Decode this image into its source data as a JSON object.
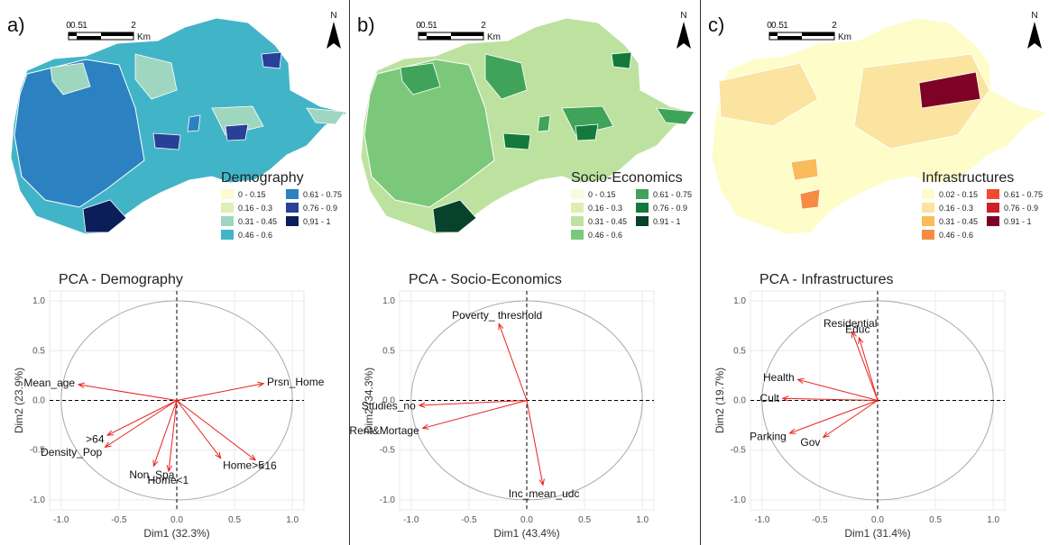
{
  "panels": [
    {
      "letter": "a)",
      "map": {
        "legend_title": "Demography",
        "scale_labels": [
          "0",
          "0.5",
          "1",
          "2",
          "Km"
        ],
        "north_label": "N",
        "classes": [
          {
            "label": "0 - 0.15",
            "color": "#fcfcd2"
          },
          {
            "label": "0.16 - 0.3",
            "color": "#dff0b4"
          },
          {
            "label": "0.31 - 0.45",
            "color": "#9fd6bf"
          },
          {
            "label": "0.46 - 0.6",
            "color": "#42b4c8"
          },
          {
            "label": "0.61 - 0.75",
            "color": "#2c82c0"
          },
          {
            "label": "0.76 - 0.9",
            "color": "#2a3f98"
          },
          {
            "label": "0,91 - 1",
            "color": "#0c1e5a"
          }
        ],
        "base_color": "#42b4c8",
        "main_color": "#2c82c0",
        "accent_color": "#9fd6bf"
      },
      "chart_data": {
        "type": "scatter",
        "title": "PCA - Demography",
        "xlabel": "Dim1 (32.3%)",
        "ylabel": "Dim2 (23.9%)",
        "xlim": [
          -1.1,
          1.1
        ],
        "ylim": [
          -1.1,
          1.1
        ],
        "xticks": [
          "-1.0",
          "-0.5",
          "0.0",
          "0.5",
          "1.0"
        ],
        "yticks": [
          "-1.0",
          "-0.5",
          "0.0",
          "0.5",
          "1.0"
        ],
        "grid": true,
        "vectors": [
          {
            "label": "Mean_age",
            "x": -0.85,
            "y": 0.16
          },
          {
            "label": "Prsn_Home",
            "x": 0.75,
            "y": 0.17
          },
          {
            "label": ">64",
            "x": -0.6,
            "y": -0.35
          },
          {
            "label": "Density_Pop",
            "x": -0.62,
            "y": -0.47
          },
          {
            "label": "Non_Spa",
            "x": -0.2,
            "y": -0.66
          },
          {
            "label": "Home<1",
            "x": -0.07,
            "y": -0.71
          },
          {
            "label": "Home>5",
            "x": 0.38,
            "y": -0.58
          },
          {
            "label": "<16",
            "x": 0.68,
            "y": -0.6
          }
        ]
      }
    },
    {
      "letter": "b)",
      "map": {
        "legend_title": "Socio-Economics",
        "scale_labels": [
          "0",
          "0.5",
          "1",
          "2",
          "Km"
        ],
        "north_label": "N",
        "classes": [
          {
            "label": "0 - 0.15",
            "color": "#f7fcdc"
          },
          {
            "label": "0.16 - 0.3",
            "color": "#dcefb0"
          },
          {
            "label": "0.31 - 0.45",
            "color": "#bde2a0"
          },
          {
            "label": "0.46 - 0.6",
            "color": "#7cc87a"
          },
          {
            "label": "0.61 - 0.75",
            "color": "#40a35a"
          },
          {
            "label": "0.76 - 0.9",
            "color": "#137a3c"
          },
          {
            "label": "0.91 - 1",
            "color": "#06432a"
          }
        ],
        "base_color": "#bde2a0",
        "main_color": "#7cc87a",
        "accent_color": "#40a35a"
      },
      "chart_data": {
        "type": "scatter",
        "title": "PCA - Socio-Economics",
        "xlabel": "Dim1 (43.4%)",
        "ylabel": "Dim2 (34.3%)",
        "xlim": [
          -1.1,
          1.1
        ],
        "ylim": [
          -1.1,
          1.1
        ],
        "xticks": [
          "-1.0",
          "-0.5",
          "0.0",
          "0.5",
          "1.0"
        ],
        "yticks": [
          "-1.0",
          "-0.5",
          "0.0",
          "0.5",
          "1.0"
        ],
        "grid": true,
        "vectors": [
          {
            "label": "Poverty_ threshold",
            "x": -0.24,
            "y": 0.77
          },
          {
            "label": "Studies_no",
            "x": -0.93,
            "y": -0.05
          },
          {
            "label": "Rent&Mortage",
            "x": -0.9,
            "y": -0.28
          },
          {
            "label": "Inc_mean_udc",
            "x": 0.14,
            "y": -0.85
          }
        ]
      }
    },
    {
      "letter": "c)",
      "map": {
        "legend_title": "Infrastructures",
        "scale_labels": [
          "0",
          "0.5",
          "1",
          "2",
          "Km"
        ],
        "north_label": "N",
        "classes": [
          {
            "label": "0.02 - 0.15",
            "color": "#fefcc8"
          },
          {
            "label": "0.16 - 0.3",
            "color": "#fbe3a0"
          },
          {
            "label": "0.31 - 0.45",
            "color": "#f9bb5c"
          },
          {
            "label": "0.46 - 0.6",
            "color": "#f68c44"
          },
          {
            "label": "0.61 - 0.75",
            "color": "#f04a30"
          },
          {
            "label": "0.76 - 0.9",
            "color": "#d11d26"
          },
          {
            "label": "0.91 - 1",
            "color": "#7d0226"
          }
        ],
        "base_color": "#fefcc8",
        "main_color": "#fbe3a0",
        "accent_color": "#f9bb5c"
      },
      "chart_data": {
        "type": "scatter",
        "title": "PCA - Infrastructures",
        "xlabel": "Dim1 (31.4%)",
        "ylabel": "Dim2 (19.7%)",
        "xlim": [
          -1.1,
          1.1
        ],
        "ylim": [
          -1.1,
          1.1
        ],
        "xticks": [
          "-1.0",
          "-0.5",
          "0.0",
          "0.5",
          "1.0"
        ],
        "yticks": [
          "-1.0",
          "-0.5",
          "0.0",
          "0.5",
          "1.0"
        ],
        "grid": true,
        "vectors": [
          {
            "label": "Residential",
            "x": -0.22,
            "y": 0.69
          },
          {
            "label": "Educ",
            "x": -0.16,
            "y": 0.63
          },
          {
            "label": "Health",
            "x": -0.69,
            "y": 0.21
          },
          {
            "label": "Cult",
            "x": -0.82,
            "y": 0.02
          },
          {
            "label": "Parking",
            "x": -0.76,
            "y": -0.33
          },
          {
            "label": "Gov",
            "x": -0.47,
            "y": -0.37
          }
        ]
      }
    }
  ]
}
